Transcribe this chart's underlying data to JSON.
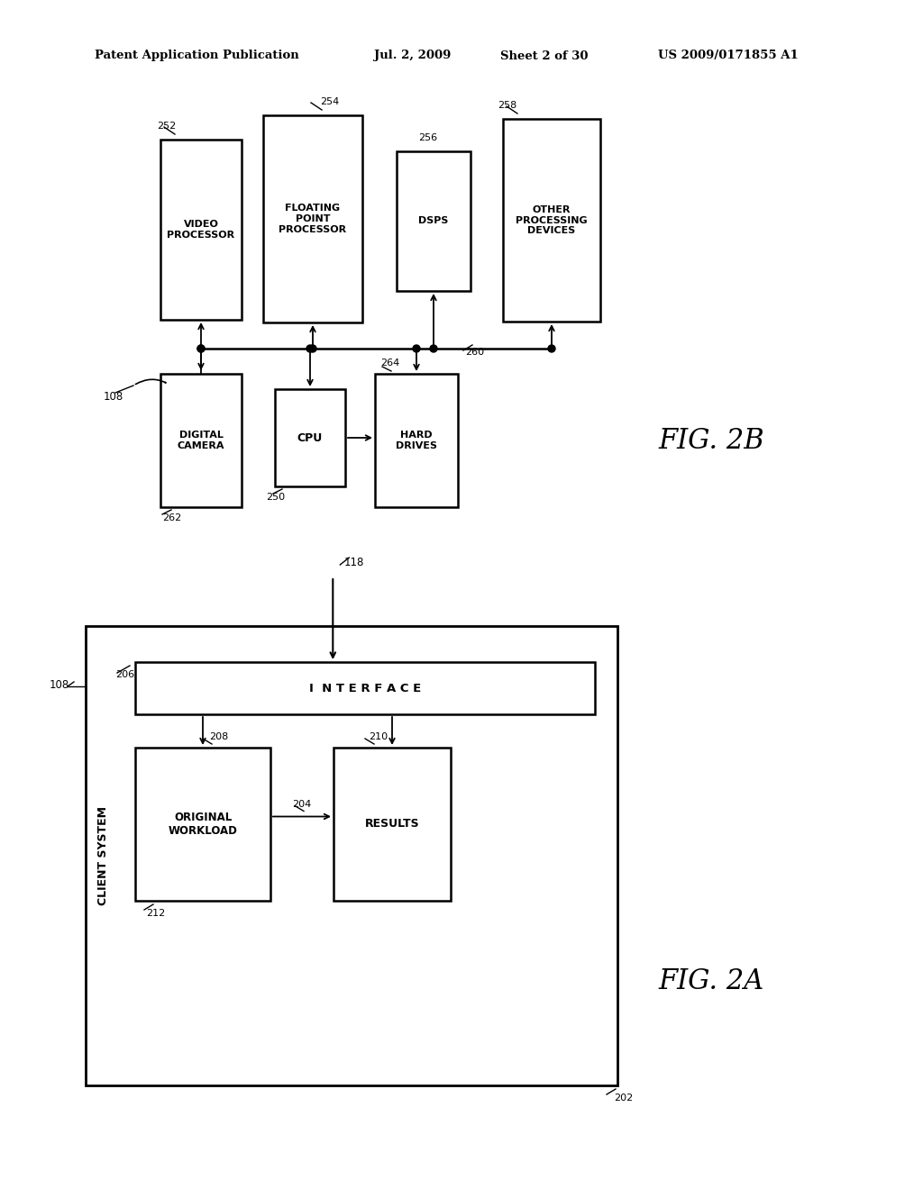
{
  "bg_color": "#ffffff",
  "header_text": "Patent Application Publication",
  "header_date": "Jul. 2, 2009",
  "header_sheet": "Sheet 2 of 30",
  "header_patent": "US 2009/0171855 A1"
}
